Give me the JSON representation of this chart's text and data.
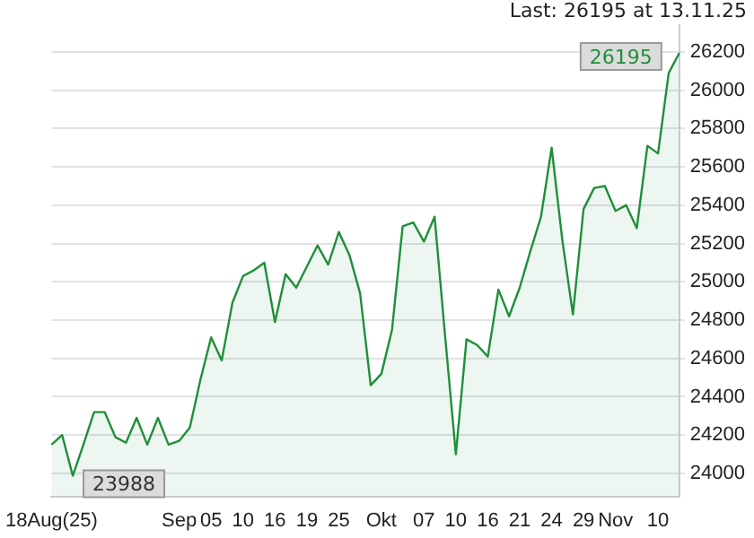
{
  "chart_data": {
    "type": "area",
    "categories": [
      "18Aug(25)",
      null,
      null,
      null,
      null,
      null,
      null,
      null,
      null,
      null,
      null,
      null,
      "Sep",
      null,
      null,
      "05",
      null,
      null,
      "10",
      null,
      null,
      "16",
      null,
      null,
      "19",
      null,
      null,
      "25",
      null,
      null,
      null,
      "Okt",
      null,
      null,
      null,
      "07",
      null,
      null,
      "10",
      null,
      null,
      "16",
      null,
      null,
      "21",
      null,
      null,
      "24",
      null,
      null,
      "29",
      null,
      null,
      "Nov",
      null,
      null,
      null,
      "10",
      null,
      null
    ],
    "series": [
      {
        "color": "#1f8f3a",
        "values": [
          24150,
          24200,
          23988,
          24150,
          24320,
          24320,
          24190,
          24160,
          24290,
          24150,
          24290,
          24150,
          24170,
          24240,
          24490,
          24710,
          24590,
          24890,
          25030,
          25060,
          25100,
          24790,
          25040,
          24970,
          25080,
          25190,
          25090,
          25260,
          25140,
          24940,
          24460,
          24520,
          24750,
          25290,
          25310,
          25210,
          25340,
          24710,
          24100,
          24700,
          24670,
          24610,
          24960,
          24820,
          24970,
          25160,
          25340,
          25700,
          25220,
          24830,
          25380,
          25490,
          25500,
          25370,
          25400,
          25280,
          25710,
          25670,
          26090,
          26195
        ]
      }
    ],
    "ylim": [
      23880,
      26340
    ],
    "yticks": [
      24000,
      24200,
      24400,
      24600,
      24800,
      25000,
      25200,
      25400,
      25600,
      25800,
      26000,
      26200
    ],
    "grid": "y",
    "annotations": [
      "Last: 26195 at 13.11.25",
      "26195",
      "23988"
    ]
  }
}
